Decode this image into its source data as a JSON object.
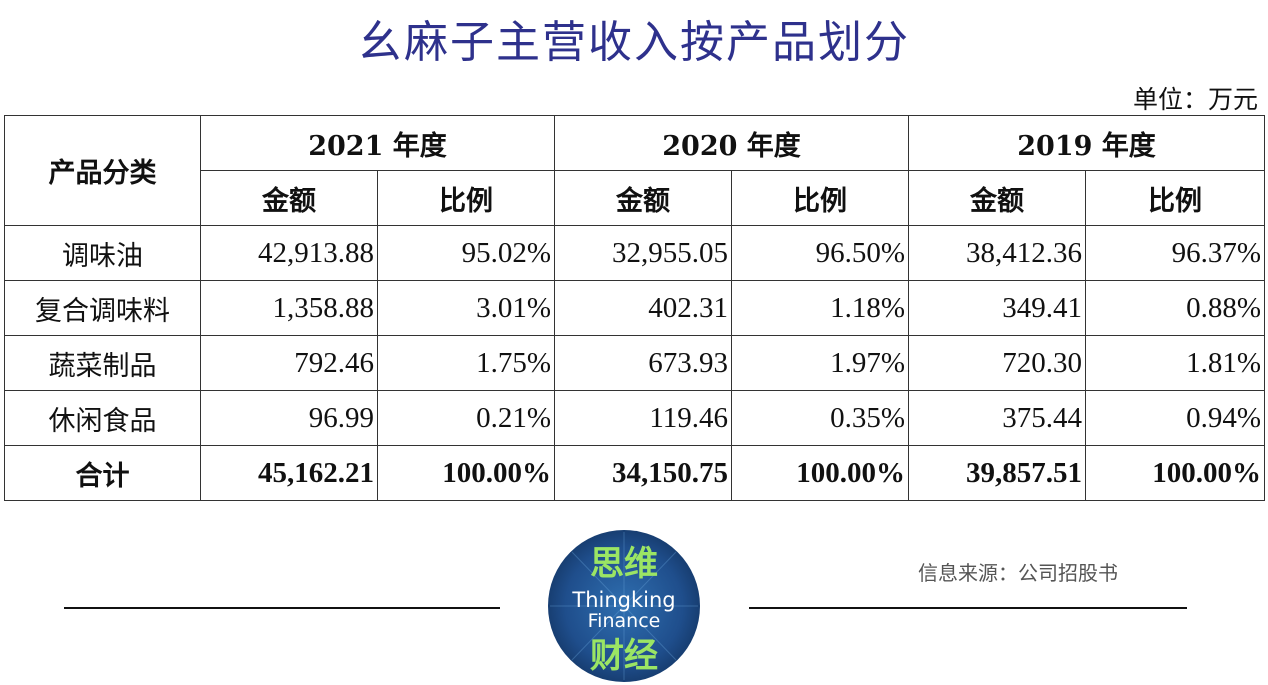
{
  "title": "幺麻子主营收入按产品划分",
  "unit_label": "单位：万元",
  "header": {
    "category": "产品分类",
    "years": [
      "2021 年度",
      "2020 年度",
      "2019 年度"
    ],
    "amount": "金额",
    "ratio": "比例"
  },
  "rows": [
    {
      "name": "调味油",
      "v2021": "42,913.88",
      "p2021": "95.02%",
      "v2020": "32,955.05",
      "p2020": "96.50%",
      "v2019": "38,412.36",
      "p2019": "96.37%"
    },
    {
      "name": "复合调味料",
      "v2021": "1,358.88",
      "p2021": "3.01%",
      "v2020": "402.31",
      "p2020": "1.18%",
      "v2019": "349.41",
      "p2019": "0.88%"
    },
    {
      "name": "蔬菜制品",
      "v2021": "792.46",
      "p2021": "1.75%",
      "v2020": "673.93",
      "p2020": "1.97%",
      "v2019": "720.30",
      "p2019": "1.81%"
    },
    {
      "name": "休闲食品",
      "v2021": "96.99",
      "p2021": "0.21%",
      "v2020": "119.46",
      "p2020": "0.35%",
      "v2019": "375.44",
      "p2019": "0.94%"
    }
  ],
  "total": {
    "name": "合计",
    "v2021": "45,162.21",
    "p2021": "100.00%",
    "v2020": "34,150.75",
    "p2020": "100.00%",
    "v2019": "39,857.51",
    "p2019": "100.00%"
  },
  "source": "信息来源：公司招股书",
  "logo": {
    "top": "思维",
    "line1": "Thingking",
    "line2": "Finance",
    "bottom": "财经"
  },
  "colors": {
    "title": "#2e318c",
    "logo_bg": "#1f4e8c",
    "logo_text": "#9be564"
  },
  "chart_data": {
    "type": "table",
    "title": "幺麻子主营收入按产品划分",
    "unit": "单位：万元",
    "columns": [
      "产品分类",
      "2021 年度 金额",
      "2021 年度 比例",
      "2020 年度 金额",
      "2020 年度 比例",
      "2019 年度 金额",
      "2019 年度 比例"
    ],
    "rows": [
      [
        "调味油",
        42913.88,
        95.02,
        32955.05,
        96.5,
        38412.36,
        96.37
      ],
      [
        "复合调味料",
        1358.88,
        3.01,
        402.31,
        1.18,
        349.41,
        0.88
      ],
      [
        "蔬菜制品",
        792.46,
        1.75,
        673.93,
        1.97,
        720.3,
        1.81
      ],
      [
        "休闲食品",
        96.99,
        0.21,
        119.46,
        0.35,
        375.44,
        0.94
      ],
      [
        "合计",
        45162.21,
        100.0,
        34150.75,
        100.0,
        39857.51,
        100.0
      ]
    ]
  }
}
